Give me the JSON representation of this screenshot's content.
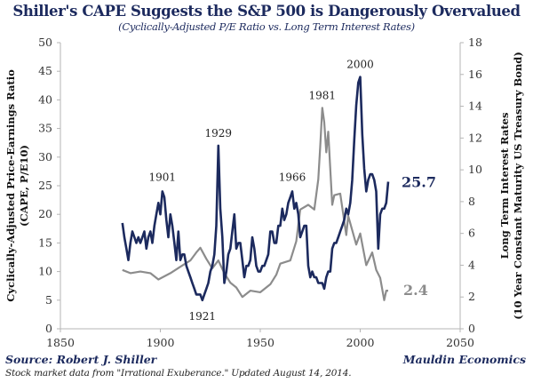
{
  "chart_data": {
    "type": "line",
    "title": "Shiller's CAPE Suggests the S&P 500 is Dangerously Overvalued",
    "subtitle": "(Cyclically-Adjusted P/E Ratio vs. Long Term Interest Rates)",
    "xlabel": "",
    "ylabel": [
      "Cyclically-Adjusted Price-Earnings Ratio",
      "(CAPE, P/E10)"
    ],
    "y2label": [
      "Long Term Interest Rates",
      "(10 Year Constant Maturity US Treasury Bond)"
    ],
    "xlim": [
      1850,
      2050
    ],
    "ylim": [
      0,
      50
    ],
    "y2lim": [
      0,
      18
    ],
    "x_ticks": [
      1850,
      1900,
      1950,
      2000,
      2050
    ],
    "y_ticks": [
      0,
      5,
      10,
      15,
      20,
      25,
      30,
      35,
      40,
      45,
      50
    ],
    "y2_ticks": [
      0,
      2,
      4,
      6,
      8,
      10,
      12,
      14,
      16,
      18
    ],
    "grid": false,
    "series": [
      {
        "name": "CAPE",
        "axis": "left",
        "color": "#1c2a5e",
        "x": [
          1881,
          1882,
          1883,
          1884,
          1885,
          1886,
          1887,
          1888,
          1889,
          1890,
          1891,
          1892,
          1893,
          1894,
          1895,
          1896,
          1897,
          1898,
          1899,
          1900,
          1901,
          1902,
          1903,
          1904,
          1905,
          1906,
          1907,
          1908,
          1909,
          1910,
          1911,
          1912,
          1913,
          1914,
          1915,
          1916,
          1917,
          1918,
          1919,
          1920,
          1921,
          1922,
          1923,
          1924,
          1925,
          1926,
          1927,
          1928,
          1929,
          1930,
          1931,
          1932,
          1933,
          1934,
          1935,
          1936,
          1937,
          1938,
          1939,
          1940,
          1941,
          1942,
          1943,
          1944,
          1945,
          1946,
          1947,
          1948,
          1949,
          1950,
          1951,
          1952,
          1953,
          1954,
          1955,
          1956,
          1957,
          1958,
          1959,
          1960,
          1961,
          1962,
          1963,
          1964,
          1965,
          1966,
          1967,
          1968,
          1969,
          1970,
          1971,
          1972,
          1973,
          1974,
          1975,
          1976,
          1977,
          1978,
          1979,
          1980,
          1981,
          1982,
          1983,
          1984,
          1985,
          1986,
          1987,
          1988,
          1989,
          1990,
          1991,
          1992,
          1993,
          1994,
          1995,
          1996,
          1997,
          1998,
          1999,
          2000,
          2001,
          2002,
          2003,
          2004,
          2005,
          2006,
          2007,
          2008,
          2009,
          2010,
          2011,
          2012,
          2013,
          2014
        ],
        "values": [
          18.5,
          16,
          14,
          12,
          15,
          17,
          16,
          15,
          16,
          15,
          16,
          17,
          14,
          16,
          17,
          15,
          18,
          20,
          22,
          20,
          24,
          23,
          19,
          16,
          20,
          18,
          15,
          12,
          17,
          12,
          13,
          13,
          11,
          10,
          9,
          8,
          7,
          6,
          6,
          6,
          5,
          6,
          7,
          8,
          10,
          11,
          13,
          18,
          32,
          21,
          16,
          8,
          10,
          13,
          14,
          17,
          20,
          14,
          15,
          15,
          12,
          9,
          11,
          11,
          12,
          16,
          14,
          11,
          10,
          10,
          11,
          11,
          12,
          13,
          17,
          17,
          15,
          15,
          18,
          18,
          21,
          19,
          20,
          22,
          23,
          24,
          21,
          22,
          20,
          16,
          17,
          18,
          18,
          11,
          9,
          10,
          9,
          9,
          8,
          8,
          8,
          7,
          9,
          10,
          10,
          14,
          15,
          15,
          16,
          17,
          18,
          19,
          21,
          20,
          22,
          26,
          33,
          39,
          43,
          44,
          34,
          28,
          24,
          26,
          27,
          27,
          26,
          24,
          14,
          20,
          21,
          21,
          22,
          25.7
        ]
      },
      {
        "name": "Long Term Interest Rate",
        "axis": "right",
        "color": "#8c8c8c",
        "x": [
          1881,
          1885,
          1890,
          1895,
          1899,
          1905,
          1910,
          1915,
          1918,
          1920,
          1923,
          1926,
          1929,
          1932,
          1935,
          1938,
          1941,
          1945,
          1950,
          1955,
          1958,
          1960,
          1965,
          1968,
          1970,
          1974,
          1977,
          1979,
          1980,
          1981,
          1982,
          1983,
          1984,
          1986,
          1987,
          1990,
          1993,
          1994,
          1998,
          2000,
          2003,
          2006,
          2008,
          2010,
          2012,
          2013,
          2014
        ],
        "values": [
          3.7,
          3.5,
          3.6,
          3.5,
          3.1,
          3.5,
          3.9,
          4.3,
          4.8,
          5.1,
          4.4,
          3.8,
          4.3,
          3.5,
          2.9,
          2.6,
          2.0,
          2.4,
          2.3,
          2.8,
          3.4,
          4.1,
          4.3,
          5.5,
          7.5,
          7.8,
          7.5,
          9.4,
          11.5,
          13.9,
          13.0,
          11.1,
          12.4,
          7.8,
          8.4,
          8.5,
          5.9,
          7.1,
          5.3,
          6.0,
          4.0,
          4.8,
          3.7,
          3.2,
          1.8,
          2.4,
          2.4
        ]
      }
    ],
    "annotations": [
      {
        "text": "1901",
        "year": 1901
      },
      {
        "text": "1921",
        "year": 1921
      },
      {
        "text": "1929",
        "year": 1929
      },
      {
        "text": "1966",
        "year": 1966
      },
      {
        "text": "1981",
        "year": 1981
      },
      {
        "text": "2000",
        "year": 2000
      },
      {
        "text": "25.7",
        "series": "CAPE",
        "note": "latest value"
      },
      {
        "text": "2.4",
        "series": "Long Term Interest Rate",
        "note": "latest value"
      }
    ]
  },
  "footer": {
    "source": "Source: Robert J. Shiller",
    "brand": "Mauldin Economics",
    "note": "Stock market data from \"Irrational Exuberance.\" Updated August 14, 2014."
  }
}
